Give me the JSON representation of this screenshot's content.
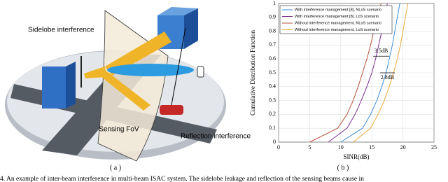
{
  "diagram": {
    "labels": [
      "Sidelobe interference",
      "Sensing FoV",
      "Reflection interference"
    ],
    "caption": "( a )"
  },
  "chart_data": {
    "type": "line",
    "caption": "( b )",
    "xlabel": "SINR(dB)",
    "ylabel": "Cumulative Distribution Function",
    "xlim": [
      0,
      25
    ],
    "ylim": [
      0,
      1
    ],
    "xticks": [
      0,
      5,
      10,
      15,
      20,
      25
    ],
    "yticks": [
      0,
      0.1,
      0.2,
      0.3,
      0.4,
      0.5,
      0.6,
      0.7,
      0.8,
      0.9,
      1
    ],
    "grid": true,
    "legend": "upper left",
    "series": [
      {
        "name": "With interference management [8], NLoS scenario",
        "color": "#3b8fd6",
        "x": [
          10,
          13.5,
          14.8,
          15.8,
          16.6,
          17.3,
          17.8,
          18.3,
          18.7,
          19.1,
          19.5
        ],
        "values": [
          0,
          0.1,
          0.2,
          0.3,
          0.4,
          0.5,
          0.6,
          0.7,
          0.8,
          0.9,
          1
        ]
      },
      {
        "name": "With interference management [8], LoS scenario",
        "color": "#7b2d8e",
        "x": [
          8,
          11,
          12.3,
          13.3,
          14.2,
          15,
          15.6,
          16.1,
          16.6,
          17,
          17.5
        ],
        "values": [
          0,
          0.1,
          0.2,
          0.3,
          0.4,
          0.5,
          0.6,
          0.7,
          0.8,
          0.9,
          1
        ]
      },
      {
        "name": "Without interference management, NLoS scenario",
        "color": "#b5533c",
        "x": [
          5,
          9.5,
          11,
          12,
          12.8,
          13.5,
          14.2,
          14.8,
          15.3,
          15.8,
          16.5
        ],
        "values": [
          0,
          0.1,
          0.2,
          0.3,
          0.4,
          0.5,
          0.6,
          0.7,
          0.8,
          0.9,
          1
        ]
      },
      {
        "name": "Without interference management, LoS scenario",
        "color": "#e8a93a",
        "x": [
          12,
          14.8,
          16,
          17,
          17.8,
          18.5,
          19.1,
          19.6,
          20,
          20.4,
          20.8
        ],
        "values": [
          0,
          0.1,
          0.2,
          0.3,
          0.4,
          0.5,
          0.6,
          0.7,
          0.8,
          0.9,
          1
        ]
      }
    ],
    "annotations": [
      "3.5dB",
      "2.8dB"
    ]
  },
  "caption_text": "4.  An example of inter-beam interference in multi-beam ISAC system. The sidelobe leakage and reflection of the sensing beams cause in"
}
